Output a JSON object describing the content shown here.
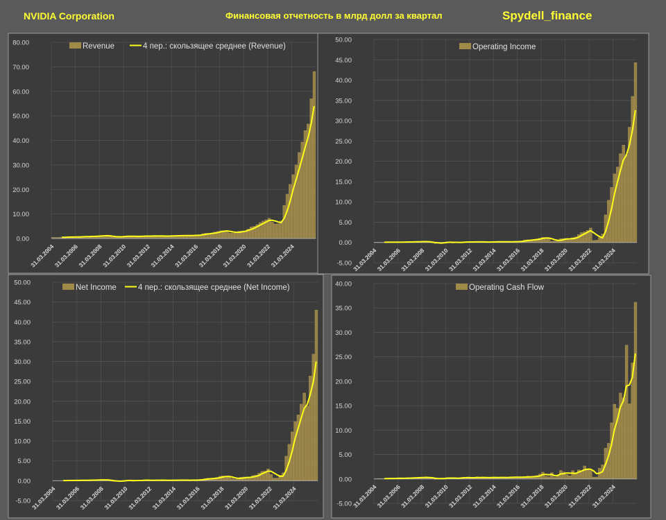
{
  "header": {
    "company": "NVIDIA Corporation",
    "title": "Финансовая отчетность в млрд долл за квартал",
    "brand": "Spydell_finance"
  },
  "colors": {
    "bar": "#a08a48",
    "line": "#ffff1a",
    "panel": "#3b3b3b",
    "background": "#5a5a5a",
    "header_text": "#ffff33"
  },
  "chart_data": [
    {
      "type": "bar",
      "x_start": "31.03.2004",
      "x_frequency": "quarterly",
      "x_tick_labels": [
        "31.03.2004",
        "31.03.2006",
        "31.03.2008",
        "31.03.2010",
        "31.03.2012",
        "31.03.2014",
        "31.03.2016",
        "31.03.2018",
        "31.03.2020",
        "31.03.2022",
        "31.03.2024"
      ],
      "ylim": [
        0,
        80
      ],
      "ytick_step": 10,
      "legend": [
        "Revenue",
        "4 пер.: скользящее среднее (Revenue)"
      ],
      "legend_placement": "top",
      "grid": true,
      "moving_average": 4,
      "series": [
        {
          "name": "Revenue",
          "values": [
            0.46,
            0.46,
            0.46,
            0.59,
            0.58,
            0.58,
            0.58,
            0.63,
            0.68,
            0.69,
            0.82,
            0.88,
            0.82,
            0.84,
            0.93,
            1.12,
            1.2,
            1.15,
            1.12,
            0.9,
            0.48,
            0.66,
            0.78,
            0.9,
            0.98,
            1.0,
            0.81,
            0.84,
            0.89,
            1.02,
            1.02,
            1.0,
            0.92,
            1.04,
            1.2,
            0.95,
            0.95,
            0.98,
            1.05,
            1.14,
            1.1,
            1.1,
            1.23,
            1.25,
            1.15,
            1.15,
            1.31,
            1.4,
            1.3,
            1.43,
            2.0,
            2.17,
            1.94,
            2.23,
            2.64,
            2.91,
            3.21,
            3.12,
            3.18,
            2.21,
            2.22,
            2.58,
            3.01,
            3.11,
            3.08,
            3.87,
            4.73,
            5.0,
            5.66,
            6.51,
            7.1,
            7.64,
            8.29,
            6.7,
            5.93,
            6.05,
            7.19,
            13.51,
            18.12,
            22.1,
            26.04,
            30.04,
            35.08,
            39.33,
            44.06,
            46.74,
            57.0,
            68.1
          ]
        }
      ]
    },
    {
      "type": "bar",
      "x_start": "31.03.2004",
      "x_frequency": "quarterly",
      "x_tick_labels": [
        "31.03.2004",
        "31.03.2006",
        "31.03.2008",
        "31.03.2010",
        "31.03.2012",
        "31.03.2014",
        "31.03.2016",
        "31.03.2018",
        "31.03.2020",
        "31.03.2022",
        "31.03.2024"
      ],
      "ylim": [
        -5,
        50
      ],
      "ytick_step": 5,
      "legend": [
        "Operating Income"
      ],
      "legend_placement": "top",
      "grid": true,
      "moving_average": 4,
      "series": [
        {
          "name": "Operating Income",
          "values": [
            0.05,
            0.06,
            0.05,
            0.08,
            0.07,
            0.07,
            0.08,
            0.1,
            0.1,
            0.11,
            0.14,
            0.15,
            0.12,
            0.15,
            0.18,
            0.24,
            0.25,
            0.2,
            0.1,
            -0.12,
            -0.25,
            -0.15,
            -0.05,
            0.05,
            0.15,
            0.12,
            -0.15,
            0.02,
            0.08,
            0.13,
            0.15,
            0.12,
            0.07,
            0.13,
            0.24,
            0.1,
            0.09,
            0.1,
            0.15,
            0.17,
            0.15,
            0.13,
            0.2,
            0.22,
            0.15,
            0.08,
            0.25,
            0.3,
            0.22,
            0.3,
            0.64,
            0.7,
            0.55,
            0.69,
            0.9,
            1.07,
            1.29,
            1.16,
            0.95,
            0.29,
            0.36,
            0.57,
            0.93,
            0.99,
            0.98,
            0.65,
            1.18,
            1.4,
            1.96,
            2.44,
            2.67,
            2.97,
            3.56,
            0.5,
            0.6,
            1.26,
            2.1,
            6.8,
            10.4,
            13.6,
            16.9,
            18.6,
            21.9,
            24.0,
            21.6,
            28.4,
            36.0,
            44.3
          ]
        }
      ]
    },
    {
      "type": "bar",
      "x_start": "31.03.2004",
      "x_frequency": "quarterly",
      "x_tick_labels": [
        "31.03.2004",
        "31.03.2006",
        "31.03.2008",
        "31.03.2010",
        "31.03.2012",
        "31.03.2014",
        "31.03.2016",
        "31.03.2018",
        "31.03.2020",
        "31.03.2022",
        "31.03.2024"
      ],
      "ylim": [
        -5,
        50
      ],
      "ytick_step": 5,
      "legend": [
        "Net Income",
        "4 пер.: скользящее среднее (Net Income)"
      ],
      "legend_placement": "top",
      "grid": true,
      "moving_average": 4,
      "series": [
        {
          "name": "Net Income",
          "values": [
            0.03,
            0.04,
            0.04,
            0.06,
            0.06,
            0.07,
            0.07,
            0.1,
            0.09,
            0.1,
            0.13,
            0.16,
            0.13,
            0.15,
            0.19,
            0.25,
            0.26,
            0.19,
            0.1,
            -0.12,
            -0.2,
            -0.1,
            -0.05,
            0.1,
            0.14,
            0.13,
            -0.14,
            0.08,
            0.17,
            0.14,
            0.15,
            0.12,
            0.06,
            0.12,
            0.21,
            0.17,
            0.08,
            0.1,
            0.12,
            0.15,
            0.14,
            0.13,
            0.17,
            0.19,
            0.13,
            0.03,
            0.25,
            0.21,
            0.2,
            0.26,
            0.54,
            0.66,
            0.51,
            0.58,
            0.84,
            1.12,
            1.24,
            1.1,
            0.9,
            0.57,
            0.39,
            0.55,
            0.9,
            0.95,
            0.92,
            0.62,
            1.34,
            1.46,
            1.91,
            2.37,
            2.46,
            3.0,
            1.62,
            0.66,
            0.68,
            1.41,
            2.0,
            6.2,
            9.2,
            12.3,
            14.9,
            16.6,
            19.3,
            22.1,
            18.8,
            26.4,
            31.9,
            43.0
          ]
        }
      ]
    },
    {
      "type": "bar",
      "x_start": "31.03.2004",
      "x_frequency": "quarterly",
      "x_tick_labels": [
        "31.03.2004",
        "31.03.2006",
        "31.03.2008",
        "31.03.2010",
        "31.03.2012",
        "31.03.2014",
        "31.03.2016",
        "31.03.2018",
        "31.03.2020",
        "31.03.2022",
        "31.03.2024"
      ],
      "ylim": [
        -5,
        40
      ],
      "ytick_step": 5,
      "legend": [
        "Operating Cash Flow"
      ],
      "legend_placement": "top",
      "grid": true,
      "moving_average": 4,
      "series": [
        {
          "name": "Operating Cash Flow",
          "values": [
            0.05,
            0.08,
            0.1,
            0.08,
            0.06,
            0.12,
            0.15,
            0.12,
            0.15,
            0.1,
            0.18,
            0.25,
            0.2,
            0.22,
            0.3,
            0.35,
            0.3,
            0.35,
            0.15,
            0.2,
            -0.1,
            0.05,
            0.15,
            0.2,
            0.25,
            0.1,
            0.15,
            0.18,
            0.2,
            0.3,
            0.35,
            0.25,
            0.1,
            0.3,
            0.45,
            0.3,
            0.2,
            0.25,
            0.3,
            0.4,
            0.3,
            0.2,
            0.35,
            0.4,
            0.25,
            0.3,
            0.4,
            0.45,
            0.3,
            0.25,
            0.5,
            0.6,
            0.35,
            0.4,
            0.7,
            1.0,
            1.4,
            0.55,
            0.45,
            1.3,
            0.35,
            0.75,
            1.75,
            1.45,
            0.9,
            0.65,
            1.7,
            1.3,
            1.87,
            1.67,
            2.67,
            1.85,
            1.73,
            0.39,
            0.39,
            2.22,
            2.9,
            6.3,
            7.3,
            11.5,
            15.3,
            14.5,
            17.6,
            16.6,
            27.4,
            15.4,
            23.8,
            36.2
          ]
        }
      ]
    }
  ]
}
